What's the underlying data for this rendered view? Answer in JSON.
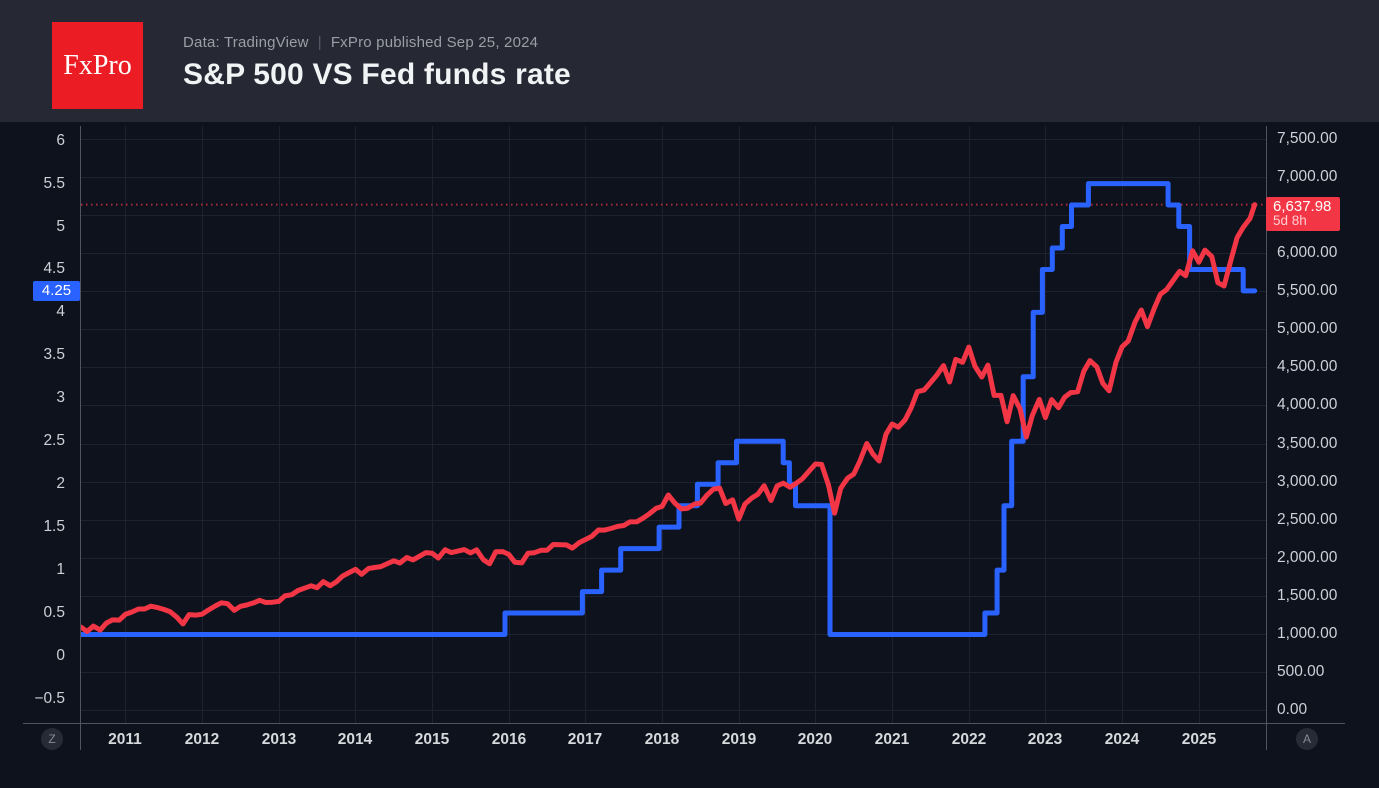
{
  "header": {
    "logo": "FxPro",
    "source": "Data: TradingView",
    "separator": "|",
    "published": "FxPro published Sep 25, 2024",
    "title": "S&P 500 VS Fed funds rate"
  },
  "badges": {
    "fed_label": "4.25",
    "sp500_price": "6,637.98",
    "sp500_countdown": "5d 8h"
  },
  "controls": {
    "z_label": "Z",
    "a_label": "A"
  },
  "colors": {
    "background": "#0d121d",
    "header": "#262933",
    "grid": "#1c2230",
    "axis_line": "#50545e",
    "tick_text": "#cdd0d6",
    "year_text": "#d6d8dc",
    "subtitle": "#9b9ea6",
    "separator": "#5a5d66",
    "title": "#f2f3f5",
    "logo_bg": "#ec1c24",
    "logo_text": "#ffffff",
    "fed_line": "#2962ff",
    "sp500_line": "#f23645",
    "badge_text": "#ffffff",
    "countdown_text": "#ffccd1",
    "button_bg": "#272b36",
    "button_text": "#868a95"
  },
  "chart_data": {
    "type": "line",
    "title": "S&P 500 VS Fed funds rate",
    "grid": true,
    "legend": "none",
    "x_axis": {
      "range": [
        2010.42,
        2025.89
      ],
      "ticks": [
        {
          "t": 2011,
          "label": "2011"
        },
        {
          "t": 2012,
          "label": "2012"
        },
        {
          "t": 2013,
          "label": "2013"
        },
        {
          "t": 2014,
          "label": "2014"
        },
        {
          "t": 2015,
          "label": "2015"
        },
        {
          "t": 2016,
          "label": "2016"
        },
        {
          "t": 2017,
          "label": "2017"
        },
        {
          "t": 2018,
          "label": "2018"
        },
        {
          "t": 2019,
          "label": "2019"
        },
        {
          "t": 2020,
          "label": "2020"
        },
        {
          "t": 2021,
          "label": "2021"
        },
        {
          "t": 2022,
          "label": "2022"
        },
        {
          "t": 2023,
          "label": "2023"
        },
        {
          "t": 2024,
          "label": "2024"
        },
        {
          "t": 2025,
          "label": "2025"
        }
      ]
    },
    "left_axis": {
      "series": "Fed funds rate",
      "unit": "%",
      "range": [
        -0.78,
        6.17
      ],
      "last_value": 4.25,
      "ticks": [
        {
          "v": 6,
          "label": "6"
        },
        {
          "v": 5.5,
          "label": "5.5"
        },
        {
          "v": 5,
          "label": "5"
        },
        {
          "v": 4.5,
          "label": "4.5"
        },
        {
          "v": 4,
          "label": "4"
        },
        {
          "v": 3.5,
          "label": "3.5"
        },
        {
          "v": 3,
          "label": "3"
        },
        {
          "v": 2.5,
          "label": "2.5"
        },
        {
          "v": 2,
          "label": "2"
        },
        {
          "v": 1.5,
          "label": "1.5"
        },
        {
          "v": 1,
          "label": "1"
        },
        {
          "v": 0.5,
          "label": "0.5"
        },
        {
          "v": 0,
          "label": "0"
        },
        {
          "v": -0.5,
          "label": "−0.5"
        }
      ]
    },
    "right_axis": {
      "series": "S&P 500",
      "range": [
        -170.8,
        7670.7
      ],
      "last_value": 6637.98,
      "grid_values": [
        7500,
        7000,
        6500,
        6000,
        5500,
        5000,
        4500,
        4000,
        3500,
        3000,
        2500,
        2000,
        1500,
        1000,
        500,
        0
      ],
      "ticks": [
        {
          "v": 7500,
          "label": "7,500.00"
        },
        {
          "v": 7000,
          "label": "7,000.00"
        },
        {
          "v": 6000,
          "label": "6,000.00"
        },
        {
          "v": 5500,
          "label": "5,500.00"
        },
        {
          "v": 5000,
          "label": "5,000.00"
        },
        {
          "v": 4500,
          "label": "4,500.00"
        },
        {
          "v": 4000,
          "label": "4,000.00"
        },
        {
          "v": 3500,
          "label": "3,500.00"
        },
        {
          "v": 3000,
          "label": "3,000.00"
        },
        {
          "v": 2500,
          "label": "2,500.00"
        },
        {
          "v": 2000,
          "label": "2,000.00"
        },
        {
          "v": 1500,
          "label": "1,500.00"
        },
        {
          "v": 1000,
          "label": "1,000.00"
        },
        {
          "v": 500,
          "label": "500.00"
        },
        {
          "v": 0,
          "label": "0.00"
        }
      ]
    },
    "last_price_line": {
      "value": 6637.98,
      "color": "#f23645",
      "style": "dotted"
    },
    "series": [
      {
        "name": "Fed funds rate",
        "color": "#2962ff",
        "scale": "left",
        "step": true,
        "points": [
          [
            2010.42,
            0.25
          ],
          [
            2015.95,
            0.5
          ],
          [
            2016.96,
            0.75
          ],
          [
            2017.21,
            1.0
          ],
          [
            2017.46,
            1.25
          ],
          [
            2017.96,
            1.5
          ],
          [
            2018.22,
            1.75
          ],
          [
            2018.46,
            2.0
          ],
          [
            2018.73,
            2.25
          ],
          [
            2018.97,
            2.5
          ],
          [
            2019.58,
            2.25
          ],
          [
            2019.66,
            2.0
          ],
          [
            2019.74,
            1.75
          ],
          [
            2020.19,
            0.25
          ],
          [
            2022.21,
            0.5
          ],
          [
            2022.37,
            1.0
          ],
          [
            2022.46,
            1.75
          ],
          [
            2022.56,
            2.5
          ],
          [
            2022.71,
            3.25
          ],
          [
            2022.84,
            4.0
          ],
          [
            2022.96,
            4.5
          ],
          [
            2023.09,
            4.75
          ],
          [
            2023.22,
            5.0
          ],
          [
            2023.34,
            5.25
          ],
          [
            2023.56,
            5.5
          ],
          [
            2024.6,
            5.25
          ],
          [
            2024.74,
            5.0
          ],
          [
            2024.88,
            4.5
          ],
          [
            2025.58,
            4.25
          ],
          [
            2025.73,
            4.25
          ]
        ]
      },
      {
        "name": "S&P 500",
        "color": "#f23645",
        "scale": "right",
        "step": false,
        "points": [
          [
            2010.42,
            1089
          ],
          [
            2010.5,
            1031
          ],
          [
            2010.58,
            1102
          ],
          [
            2010.67,
            1049
          ],
          [
            2010.75,
            1141
          ],
          [
            2010.83,
            1183
          ],
          [
            2010.92,
            1181
          ],
          [
            2011,
            1258
          ],
          [
            2011.08,
            1286
          ],
          [
            2011.17,
            1327
          ],
          [
            2011.25,
            1326
          ],
          [
            2011.33,
            1364
          ],
          [
            2011.42,
            1345
          ],
          [
            2011.5,
            1321
          ],
          [
            2011.58,
            1292
          ],
          [
            2011.67,
            1219
          ],
          [
            2011.75,
            1131
          ],
          [
            2011.83,
            1253
          ],
          [
            2011.92,
            1247
          ],
          [
            2012,
            1258
          ],
          [
            2012.08,
            1312
          ],
          [
            2012.17,
            1366
          ],
          [
            2012.25,
            1408
          ],
          [
            2012.33,
            1398
          ],
          [
            2012.42,
            1310
          ],
          [
            2012.5,
            1362
          ],
          [
            2012.58,
            1379
          ],
          [
            2012.67,
            1407
          ],
          [
            2012.75,
            1441
          ],
          [
            2012.83,
            1412
          ],
          [
            2012.92,
            1416
          ],
          [
            2013,
            1426
          ],
          [
            2013.08,
            1498
          ],
          [
            2013.17,
            1515
          ],
          [
            2013.25,
            1569
          ],
          [
            2013.33,
            1598
          ],
          [
            2013.42,
            1631
          ],
          [
            2013.5,
            1606
          ],
          [
            2013.58,
            1686
          ],
          [
            2013.67,
            1633
          ],
          [
            2013.75,
            1682
          ],
          [
            2013.83,
            1757
          ],
          [
            2013.92,
            1806
          ],
          [
            2014,
            1848
          ],
          [
            2014.08,
            1783
          ],
          [
            2014.17,
            1859
          ],
          [
            2014.25,
            1872
          ],
          [
            2014.33,
            1884
          ],
          [
            2014.42,
            1924
          ],
          [
            2014.5,
            1960
          ],
          [
            2014.58,
            1931
          ],
          [
            2014.67,
            2003
          ],
          [
            2014.75,
            1972
          ],
          [
            2014.83,
            2018
          ],
          [
            2014.92,
            2068
          ],
          [
            2015,
            2059
          ],
          [
            2015.08,
            1995
          ],
          [
            2015.17,
            2105
          ],
          [
            2015.25,
            2068
          ],
          [
            2015.33,
            2086
          ],
          [
            2015.42,
            2107
          ],
          [
            2015.5,
            2063
          ],
          [
            2015.58,
            2104
          ],
          [
            2015.67,
            1972
          ],
          [
            2015.75,
            1920
          ],
          [
            2015.83,
            2079
          ],
          [
            2015.92,
            2080
          ],
          [
            2016,
            2044
          ],
          [
            2016.08,
            1940
          ],
          [
            2016.17,
            1932
          ],
          [
            2016.25,
            2060
          ],
          [
            2016.33,
            2065
          ],
          [
            2016.42,
            2097
          ],
          [
            2016.5,
            2099
          ],
          [
            2016.58,
            2174
          ],
          [
            2016.67,
            2171
          ],
          [
            2016.75,
            2168
          ],
          [
            2016.83,
            2126
          ],
          [
            2016.92,
            2199
          ],
          [
            2017,
            2239
          ],
          [
            2017.08,
            2279
          ],
          [
            2017.17,
            2364
          ],
          [
            2017.25,
            2363
          ],
          [
            2017.33,
            2384
          ],
          [
            2017.42,
            2412
          ],
          [
            2017.5,
            2423
          ],
          [
            2017.58,
            2470
          ],
          [
            2017.67,
            2472
          ],
          [
            2017.75,
            2519
          ],
          [
            2017.83,
            2575
          ],
          [
            2017.92,
            2648
          ],
          [
            2018,
            2674
          ],
          [
            2018.08,
            2824
          ],
          [
            2018.17,
            2714
          ],
          [
            2018.25,
            2641
          ],
          [
            2018.33,
            2648
          ],
          [
            2018.42,
            2705
          ],
          [
            2018.5,
            2718
          ],
          [
            2018.58,
            2816
          ],
          [
            2018.67,
            2902
          ],
          [
            2018.75,
            2914
          ],
          [
            2018.83,
            2712
          ],
          [
            2018.92,
            2760
          ],
          [
            2019,
            2507
          ],
          [
            2019.08,
            2704
          ],
          [
            2019.17,
            2784
          ],
          [
            2019.25,
            2834
          ],
          [
            2019.33,
            2946
          ],
          [
            2019.42,
            2752
          ],
          [
            2019.5,
            2942
          ],
          [
            2019.58,
            2980
          ],
          [
            2019.67,
            2926
          ],
          [
            2019.75,
            2977
          ],
          [
            2019.83,
            3038
          ],
          [
            2019.92,
            3141
          ],
          [
            2020,
            3231
          ],
          [
            2020.08,
            3226
          ],
          [
            2020.17,
            2954
          ],
          [
            2020.25,
            2585
          ],
          [
            2020.33,
            2912
          ],
          [
            2020.42,
            3044
          ],
          [
            2020.5,
            3100
          ],
          [
            2020.58,
            3271
          ],
          [
            2020.67,
            3500
          ],
          [
            2020.75,
            3363
          ],
          [
            2020.83,
            3270
          ],
          [
            2020.92,
            3622
          ],
          [
            2021,
            3756
          ],
          [
            2021.08,
            3714
          ],
          [
            2021.17,
            3811
          ],
          [
            2021.25,
            3973
          ],
          [
            2021.33,
            4181
          ],
          [
            2021.42,
            4204
          ],
          [
            2021.5,
            4298
          ],
          [
            2021.58,
            4395
          ],
          [
            2021.67,
            4523
          ],
          [
            2021.75,
            4308
          ],
          [
            2021.83,
            4605
          ],
          [
            2021.92,
            4567
          ],
          [
            2022,
            4766
          ],
          [
            2022.08,
            4516
          ],
          [
            2022.17,
            4374
          ],
          [
            2022.25,
            4530
          ],
          [
            2022.33,
            4132
          ],
          [
            2022.42,
            4132
          ],
          [
            2022.5,
            3785
          ],
          [
            2022.58,
            4130
          ],
          [
            2022.67,
            3955
          ],
          [
            2022.75,
            3586
          ],
          [
            2022.83,
            3872
          ],
          [
            2022.92,
            4080
          ],
          [
            2023,
            3840
          ],
          [
            2023.08,
            4077
          ],
          [
            2023.17,
            3970
          ],
          [
            2023.25,
            4109
          ],
          [
            2023.33,
            4169
          ],
          [
            2023.42,
            4180
          ],
          [
            2023.5,
            4450
          ],
          [
            2023.58,
            4589
          ],
          [
            2023.67,
            4508
          ],
          [
            2023.75,
            4288
          ],
          [
            2023.83,
            4194
          ],
          [
            2023.92,
            4568
          ],
          [
            2024,
            4770
          ],
          [
            2024.08,
            4846
          ],
          [
            2024.17,
            5096
          ],
          [
            2024.25,
            5254
          ],
          [
            2024.33,
            5036
          ],
          [
            2024.42,
            5278
          ],
          [
            2024.5,
            5460
          ],
          [
            2024.58,
            5522
          ],
          [
            2024.67,
            5648
          ],
          [
            2024.75,
            5762
          ],
          [
            2024.83,
            5705
          ],
          [
            2024.92,
            6032
          ],
          [
            2025,
            5882
          ],
          [
            2025.08,
            6041
          ],
          [
            2025.17,
            5955
          ],
          [
            2025.25,
            5612
          ],
          [
            2025.33,
            5569
          ],
          [
            2025.42,
            5912
          ],
          [
            2025.5,
            6205
          ],
          [
            2025.58,
            6339
          ],
          [
            2025.67,
            6460
          ],
          [
            2025.73,
            6638
          ]
        ]
      }
    ]
  }
}
